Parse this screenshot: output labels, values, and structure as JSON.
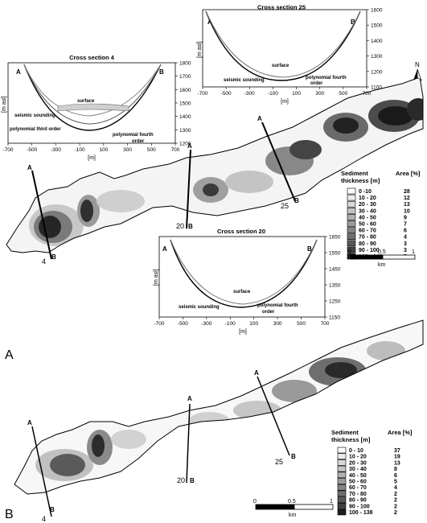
{
  "panel_a": {
    "label": "A",
    "north": "N",
    "sections": [
      {
        "id": "4",
        "end_a": "A",
        "end_b": "B"
      },
      {
        "id": "20",
        "end_a": "A",
        "end_b": "B"
      },
      {
        "id": "25",
        "end_a": "A",
        "end_b": "B"
      }
    ],
    "legend": {
      "title_line1": "Sediment",
      "title_line2": "thickness [m]",
      "area_header": "Area [%]",
      "rows": [
        {
          "range": "0 -10",
          "area": "28",
          "color": "#ffffff"
        },
        {
          "range": "10 - 20",
          "area": "12",
          "color": "#ececec"
        },
        {
          "range": "20 - 30",
          "area": "13",
          "color": "#d8d8d8"
        },
        {
          "range": "30 - 40",
          "area": "10",
          "color": "#c4c4c4"
        },
        {
          "range": "40 - 50",
          "area": "9",
          "color": "#afafaf"
        },
        {
          "range": "50 - 60",
          "area": "7",
          "color": "#9a9a9a"
        },
        {
          "range": "60 - 70",
          "area": "6",
          "color": "#858585"
        },
        {
          "range": "70 - 80",
          "area": "4",
          "color": "#6e6e6e"
        },
        {
          "range": "80 - 90",
          "area": "3",
          "color": "#585858"
        },
        {
          "range": "90 - 100",
          "area": "3",
          "color": "#404040"
        },
        {
          "range": "100 - 146",
          "area": "5",
          "color": "#1e1e1e"
        }
      ]
    },
    "scale": {
      "t0": "0",
      "t1": "0.5",
      "t2": "1",
      "unit": "km"
    }
  },
  "panel_b": {
    "label": "B",
    "sections": [
      {
        "id": "4",
        "end_a": "A",
        "end_b": "B"
      },
      {
        "id": "20",
        "end_a": "A",
        "end_b": "B"
      },
      {
        "id": "25",
        "end_a": "A",
        "end_b": "B"
      }
    ],
    "legend": {
      "title_line1": "Sediment",
      "title_line2": "thickness [m]",
      "area_header": "Area [%]",
      "rows": [
        {
          "range": "0 - 10",
          "area": "37",
          "color": "#ffffff"
        },
        {
          "range": "10 - 20",
          "area": "19",
          "color": "#ececec"
        },
        {
          "range": "20 - 30",
          "area": "13",
          "color": "#d8d8d8"
        },
        {
          "range": "30 - 40",
          "area": "8",
          "color": "#c4c4c4"
        },
        {
          "range": "40 - 50",
          "area": "6",
          "color": "#afafaf"
        },
        {
          "range": "50 - 60",
          "area": "5",
          "color": "#9a9a9a"
        },
        {
          "range": "60 - 70",
          "area": "4",
          "color": "#858585"
        },
        {
          "range": "70 - 80",
          "area": "2",
          "color": "#6e6e6e"
        },
        {
          "range": "80 - 90",
          "area": "2",
          "color": "#585858"
        },
        {
          "range": "90 - 100",
          "area": "2",
          "color": "#404040"
        },
        {
          "range": "100 - 138",
          "area": "2",
          "color": "#1e1e1e"
        }
      ]
    },
    "scale": {
      "t0": "0",
      "t1": "0.5",
      "t2": "1",
      "unit": "km"
    }
  },
  "cross_sections": [
    {
      "title": "Cross section 4",
      "end_a": "A",
      "end_b": "B",
      "xlabel": "[m]",
      "ylabel": "[m asl]",
      "xticks": [
        "-700",
        "-500",
        "-300",
        "-100",
        "100",
        "300",
        "500",
        "700"
      ],
      "yticks": [
        "1800",
        "1700",
        "1600",
        "1500",
        "1400",
        "1300",
        "1200"
      ],
      "annotations": [
        "surface",
        "seismic sounding",
        "polynomial third order",
        "polynomial fourth",
        "order"
      ]
    },
    {
      "title": "Cross section 25",
      "end_a": "A",
      "end_b": "B",
      "xlabel": "[m]",
      "ylabel": "[m asl]",
      "xticks": [
        "-700",
        "-500",
        "-300",
        "-100",
        "100",
        "300",
        "500",
        "700"
      ],
      "yticks": [
        "1600",
        "1500",
        "1400",
        "1300",
        "1200",
        "1100"
      ],
      "annotations": [
        "surface",
        "seismic sounding",
        "polynomial fourth",
        "order"
      ]
    },
    {
      "title": "Cross section 20",
      "end_a": "A",
      "end_b": "B",
      "xlabel": "[m]",
      "ylabel": "[m asl]",
      "xticks": [
        "-700",
        "-500",
        "-300",
        "-100",
        "100",
        "300",
        "500",
        "700"
      ],
      "yticks": [
        "1650",
        "1550",
        "1450",
        "1350",
        "1250",
        "1150"
      ],
      "annotations": [
        "surface",
        "seismic sounding",
        "polynomial fourth",
        "order"
      ]
    }
  ]
}
